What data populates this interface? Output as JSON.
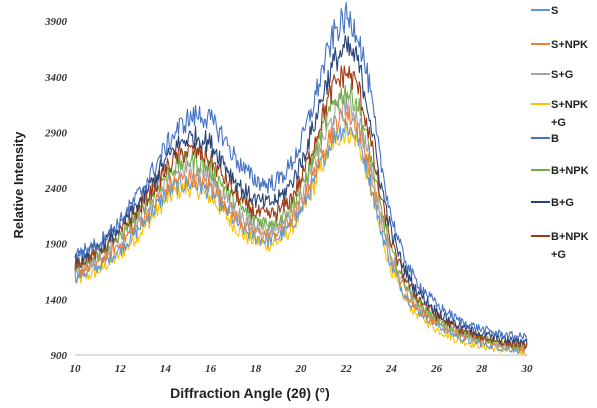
{
  "chart_data": {
    "type": "line",
    "title": "",
    "xlabel": "Diffraction Angle (2θ) (°)",
    "ylabel": "Relative Intensity",
    "xlim": [
      10,
      30
    ],
    "ylim": [
      900,
      4000
    ],
    "xticks": [
      10,
      12,
      14,
      16,
      18,
      20,
      22,
      24,
      26,
      28,
      30
    ],
    "yticks": [
      900,
      1400,
      1900,
      2400,
      2900,
      3400,
      3900
    ],
    "grid": false,
    "legend_position": "right",
    "x": [
      10,
      11,
      12,
      13,
      14,
      14.5,
      15,
      15.5,
      16,
      16.5,
      17,
      17.5,
      18,
      18.5,
      19,
      19.5,
      20,
      20.5,
      21,
      21.5,
      22,
      22.5,
      23,
      23.5,
      24,
      24.5,
      25,
      26,
      27,
      28,
      29,
      30
    ],
    "series": [
      {
        "name": "S",
        "color": "#5b9bd5",
        "legend_lines": [
          "S"
        ],
        "values": [
          1600,
          1690,
          1850,
          2080,
          2340,
          2420,
          2440,
          2420,
          2370,
          2250,
          2120,
          2020,
          1960,
          1930,
          1960,
          2050,
          2200,
          2420,
          2680,
          2880,
          2960,
          2870,
          2520,
          2050,
          1700,
          1480,
          1330,
          1170,
          1060,
          1000,
          960,
          940
        ]
      },
      {
        "name": "S+NPK",
        "color": "#ed7d31",
        "legend_lines": [
          "S+NPK"
        ],
        "values": [
          1640,
          1730,
          1900,
          2130,
          2390,
          2470,
          2500,
          2480,
          2420,
          2300,
          2170,
          2070,
          2010,
          1980,
          2010,
          2100,
          2260,
          2490,
          2760,
          2980,
          3070,
          2980,
          2620,
          2130,
          1760,
          1530,
          1370,
          1200,
          1090,
          1030,
          990,
          960
        ]
      },
      {
        "name": "S+G",
        "color": "#a5a5a5",
        "legend_lines": [
          "S+G"
        ],
        "values": [
          1680,
          1770,
          1940,
          2180,
          2450,
          2540,
          2570,
          2550,
          2490,
          2360,
          2230,
          2120,
          2060,
          2030,
          2060,
          2160,
          2320,
          2560,
          2840,
          3070,
          3160,
          3060,
          2690,
          2180,
          1790,
          1550,
          1390,
          1210,
          1100,
          1040,
          990,
          960
        ]
      },
      {
        "name": "S+NPK +G",
        "color": "#ffc000",
        "legend_lines": [
          "S+NPK",
          "+G"
        ],
        "values": [
          1560,
          1650,
          1800,
          2030,
          2290,
          2370,
          2400,
          2380,
          2320,
          2200,
          2070,
          1970,
          1920,
          1890,
          1920,
          2010,
          2160,
          2380,
          2640,
          2840,
          2910,
          2830,
          2480,
          2010,
          1660,
          1440,
          1290,
          1130,
          1030,
          980,
          940,
          920
        ]
      },
      {
        "name": "B",
        "color": "#4472c4",
        "legend_lines": [
          "B"
        ],
        "values": [
          1800,
          1900,
          2100,
          2400,
          2760,
          2920,
          3020,
          3060,
          3010,
          2880,
          2700,
          2560,
          2470,
          2430,
          2470,
          2590,
          2800,
          3120,
          3500,
          3810,
          3930,
          3820,
          3340,
          2660,
          2140,
          1810,
          1590,
          1350,
          1210,
          1130,
          1080,
          1060
        ]
      },
      {
        "name": "B+NPK",
        "color": "#70ad47",
        "legend_lines": [
          "B+NPK"
        ],
        "values": [
          1700,
          1790,
          1970,
          2220,
          2510,
          2610,
          2650,
          2630,
          2570,
          2440,
          2300,
          2190,
          2120,
          2090,
          2120,
          2220,
          2390,
          2650,
          2940,
          3180,
          3270,
          3170,
          2780,
          2240,
          1830,
          1580,
          1410,
          1220,
          1110,
          1050,
          1000,
          970
        ]
      },
      {
        "name": "B+G",
        "color": "#264478",
        "legend_lines": [
          "B+G"
        ],
        "values": [
          1760,
          1860,
          2050,
          2320,
          2640,
          2780,
          2850,
          2860,
          2800,
          2660,
          2490,
          2370,
          2290,
          2260,
          2300,
          2420,
          2620,
          2920,
          3270,
          3550,
          3660,
          3550,
          3100,
          2470,
          2000,
          1710,
          1510,
          1290,
          1160,
          1090,
          1040,
          1020
        ]
      },
      {
        "name": "B+NPK +G",
        "color": "#9e3a12",
        "legend_lines": [
          "B+NPK",
          "+G"
        ],
        "values": [
          1720,
          1820,
          2000,
          2260,
          2560,
          2680,
          2730,
          2720,
          2650,
          2520,
          2370,
          2250,
          2180,
          2150,
          2180,
          2290,
          2470,
          2750,
          3080,
          3340,
          3440,
          3330,
          2910,
          2340,
          1900,
          1630,
          1450,
          1250,
          1130,
          1060,
          1010,
          990
        ]
      }
    ]
  }
}
